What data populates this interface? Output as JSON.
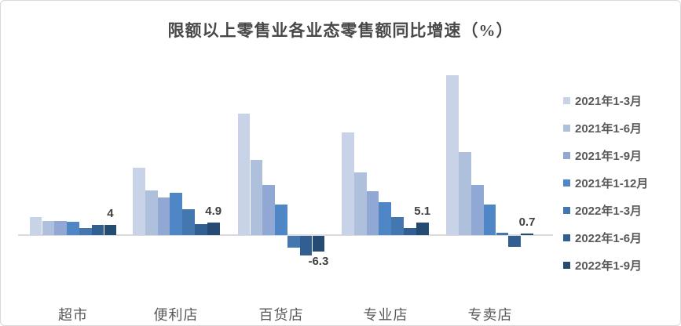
{
  "title": "限额以上零售业各业态零售额同比增速（%）",
  "chart_data": {
    "type": "bar",
    "title": "限额以上零售业各业态零售额同比增速（%）",
    "categories": [
      "超市",
      "便利店",
      "百货店",
      "专业店",
      "专卖店"
    ],
    "series": [
      {
        "name": "2021年1-3月",
        "color": "#c9d3e8",
        "values": [
          7.2,
          26.8,
          48.3,
          40.8,
          63.7
        ]
      },
      {
        "name": "2021年1-6月",
        "color": "#afc0dd",
        "values": [
          5.6,
          17.7,
          30.1,
          25.1,
          33.2
        ]
      },
      {
        "name": "2021年1-9月",
        "color": "#90a8d3",
        "values": [
          5.7,
          14.9,
          20.1,
          17.6,
          20.1
        ]
      },
      {
        "name": "2021年1-12月",
        "color": "#4f86c6",
        "values": [
          5.4,
          17.0,
          12.1,
          13.1,
          12.1
        ]
      },
      {
        "name": "2022年1-3月",
        "color": "#4476af",
        "values": [
          2.8,
          10.2,
          -4.8,
          7.1,
          1.0
        ]
      },
      {
        "name": "2022年1-6月",
        "color": "#315f92",
        "values": [
          4.2,
          4.3,
          -7.8,
          2.8,
          -4.3
        ]
      },
      {
        "name": "2022年1-9月",
        "color": "#254b72",
        "values": [
          4.0,
          4.9,
          -6.3,
          5.1,
          0.7
        ]
      }
    ],
    "data_labels": {
      "series": "2022年1-9月",
      "values": [
        "4",
        "4.9",
        "-6.3",
        "5.1",
        "0.7"
      ]
    },
    "ylim": [
      -10,
      66
    ],
    "grid": false,
    "legend_position": "right",
    "axis_color": "#d9d9d9",
    "label_color": "#3f3f3f",
    "text_color": "#595959"
  }
}
